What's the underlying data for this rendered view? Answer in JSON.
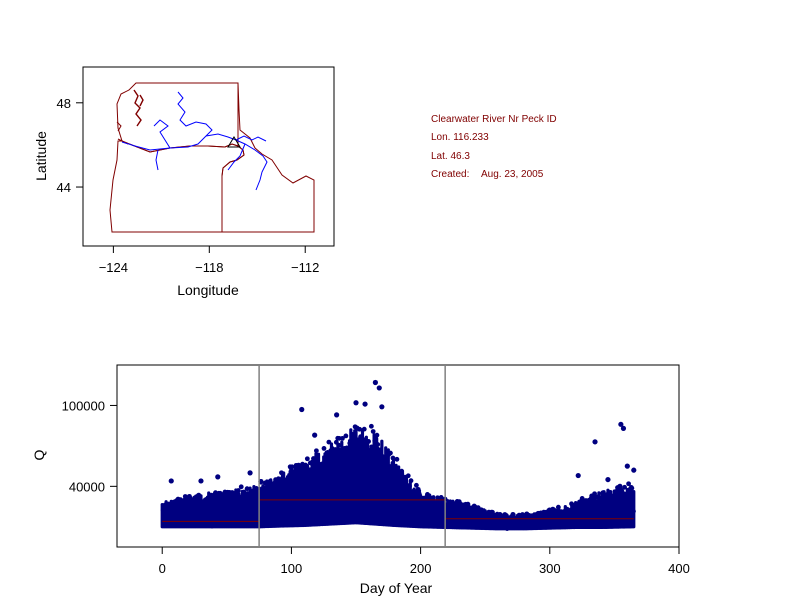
{
  "station_info": {
    "name": "Clearwater River Nr Peck ID",
    "lon": "Lon. 116.233",
    "lat": "Lat. 46.3",
    "created_label": "Created:",
    "created_date": "Aug. 23, 2005"
  },
  "colors": {
    "border": "#800000",
    "river": "#0000ff",
    "points": "#000080",
    "reference_lines": "#808080",
    "fit_line": "#800000"
  },
  "chart_data": [
    {
      "type": "map",
      "xlabel": "Longitude",
      "ylabel": "Latitude",
      "xlim": [
        -125.9,
        -110.2
      ],
      "ylim": [
        41.2,
        49.7
      ],
      "xticks": [
        -124,
        -118,
        -112
      ],
      "yticks": [
        44,
        48
      ],
      "station_marker": {
        "lon": -116.233,
        "lat": 46.3
      },
      "features": [
        "state-boundaries",
        "rivers"
      ]
    },
    {
      "type": "scatter",
      "xlabel": "Day of Year",
      "ylabel": "Q",
      "xlim": [
        -35,
        400
      ],
      "ylim": [
        -5000,
        130000
      ],
      "xticks": [
        0,
        100,
        200,
        300,
        400
      ],
      "yticks": [
        40000,
        100000
      ],
      "vertical_lines": [
        75,
        219
      ],
      "fit_segments": [
        {
          "x": [
            0,
            75
          ],
          "y": 14000
        },
        {
          "x": [
            75,
            219
          ],
          "y": 30000
        },
        {
          "x": [
            219,
            365
          ],
          "y": 16000
        }
      ],
      "envelope": {
        "day": [
          0,
          20,
          40,
          60,
          75,
          90,
          110,
          130,
          150,
          165,
          180,
          200,
          220,
          240,
          260,
          280,
          300,
          320,
          340,
          365
        ],
        "low": [
          10000,
          10000,
          10000,
          10000,
          10000,
          10500,
          11000,
          12000,
          13000,
          12000,
          11000,
          10000,
          9500,
          9000,
          8500,
          8500,
          9000,
          9500,
          9500,
          10000
        ],
        "high": [
          28000,
          32000,
          36000,
          38000,
          42000,
          48000,
          58000,
          72000,
          85000,
          82000,
          60000,
          36000,
          30000,
          26000,
          19000,
          19000,
          22000,
          28000,
          36000,
          42000
        ]
      },
      "outliers": [
        {
          "x": 7,
          "y": 44000
        },
        {
          "x": 30,
          "y": 44000
        },
        {
          "x": 43,
          "y": 47000
        },
        {
          "x": 68,
          "y": 50000
        },
        {
          "x": 108,
          "y": 55000
        },
        {
          "x": 118,
          "y": 78000
        },
        {
          "x": 108,
          "y": 97000
        },
        {
          "x": 135,
          "y": 93000
        },
        {
          "x": 150,
          "y": 102000
        },
        {
          "x": 157,
          "y": 101000
        },
        {
          "x": 165,
          "y": 117000
        },
        {
          "x": 168,
          "y": 113000
        },
        {
          "x": 170,
          "y": 99000
        },
        {
          "x": 335,
          "y": 73000
        },
        {
          "x": 355,
          "y": 86000
        },
        {
          "x": 357,
          "y": 83000
        },
        {
          "x": 322,
          "y": 48000
        },
        {
          "x": 345,
          "y": 45000
        },
        {
          "x": 360,
          "y": 55000
        },
        {
          "x": 365,
          "y": 52000
        }
      ]
    }
  ]
}
